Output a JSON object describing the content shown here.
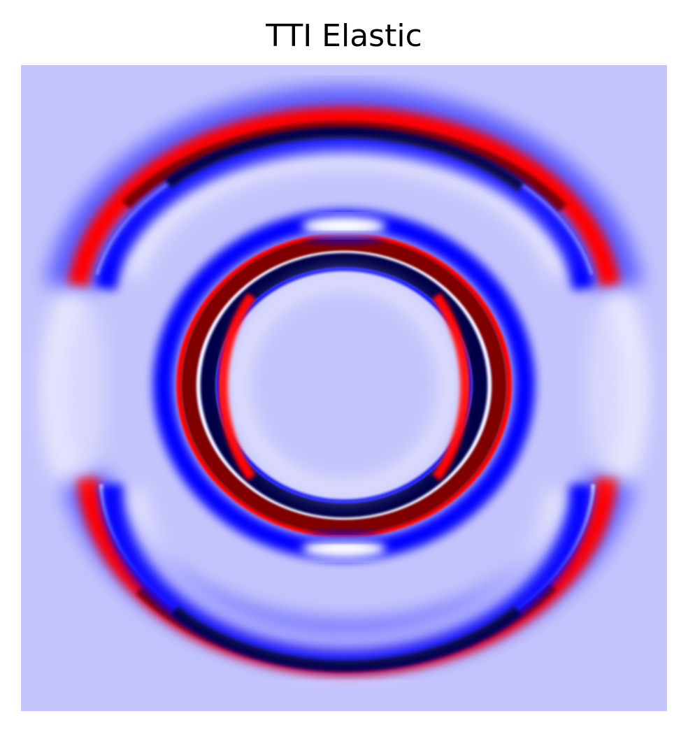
{
  "figure": {
    "title": "TTI Elastic",
    "colormap": "seismic",
    "background_color": "#c4c4fc",
    "colors": {
      "dark_blue": "#00004a",
      "blue": "#0000ff",
      "white": "#ffffff",
      "red": "#ff0000",
      "dark_red": "#800000"
    }
  }
}
